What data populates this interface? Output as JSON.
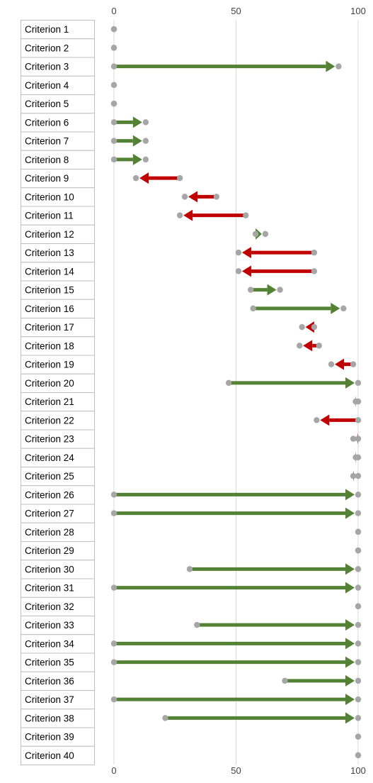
{
  "chart_data": {
    "type": "arrow-dumbbell",
    "title": "",
    "xlabel": "",
    "ylabel": "",
    "xlim": [
      0,
      100
    ],
    "x_ticks": [
      "0",
      "50",
      "100"
    ],
    "grid": "vertical",
    "colors": {
      "increase": "#548235",
      "decrease": "#C00000",
      "marker": "#A6A6A6",
      "grid": "#D9D9D9",
      "label_border": "#BFBFBF",
      "text": "#000000",
      "tick_text": "#404040"
    },
    "categories": [
      "Criterion 1",
      "Criterion 2",
      "Criterion 3",
      "Criterion 4",
      "Criterion 5",
      "Criterion 6",
      "Criterion 7",
      "Criterion 8",
      "Criterion 9",
      "Criterion 10",
      "Criterion 11",
      "Criterion 12",
      "Criterion 13",
      "Criterion 14",
      "Criterion 15",
      "Criterion 16",
      "Criterion 17",
      "Criterion 18",
      "Criterion 19",
      "Criterion 20",
      "Criterion 21",
      "Criterion 22",
      "Criterion 23",
      "Criterion 24",
      "Criterion 25",
      "Criterion 26",
      "Criterion 27",
      "Criterion 28",
      "Criterion 29",
      "Criterion 30",
      "Criterion 31",
      "Criterion 32",
      "Criterion 33",
      "Criterion 34",
      "Criterion 35",
      "Criterion 36",
      "Criterion 37",
      "Criterion 38",
      "Criterion 39",
      "Criterion 40"
    ],
    "start": [
      0,
      0,
      0,
      0,
      0,
      0,
      0,
      0,
      27,
      42,
      54,
      58,
      82,
      82,
      56,
      57,
      82,
      84,
      98,
      47,
      99,
      100,
      100,
      99,
      98,
      0,
      0,
      100,
      100,
      31,
      0,
      100,
      34,
      0,
      0,
      70,
      0,
      21,
      100,
      100
    ],
    "end": [
      0,
      0,
      92,
      0,
      0,
      13,
      13,
      13,
      9,
      29,
      27,
      62,
      51,
      51,
      68,
      94,
      77,
      76,
      89,
      100,
      100,
      83,
      98,
      100,
      100,
      100,
      100,
      100,
      100,
      100,
      100,
      100,
      100,
      100,
      100,
      100,
      100,
      100,
      100,
      100
    ]
  }
}
